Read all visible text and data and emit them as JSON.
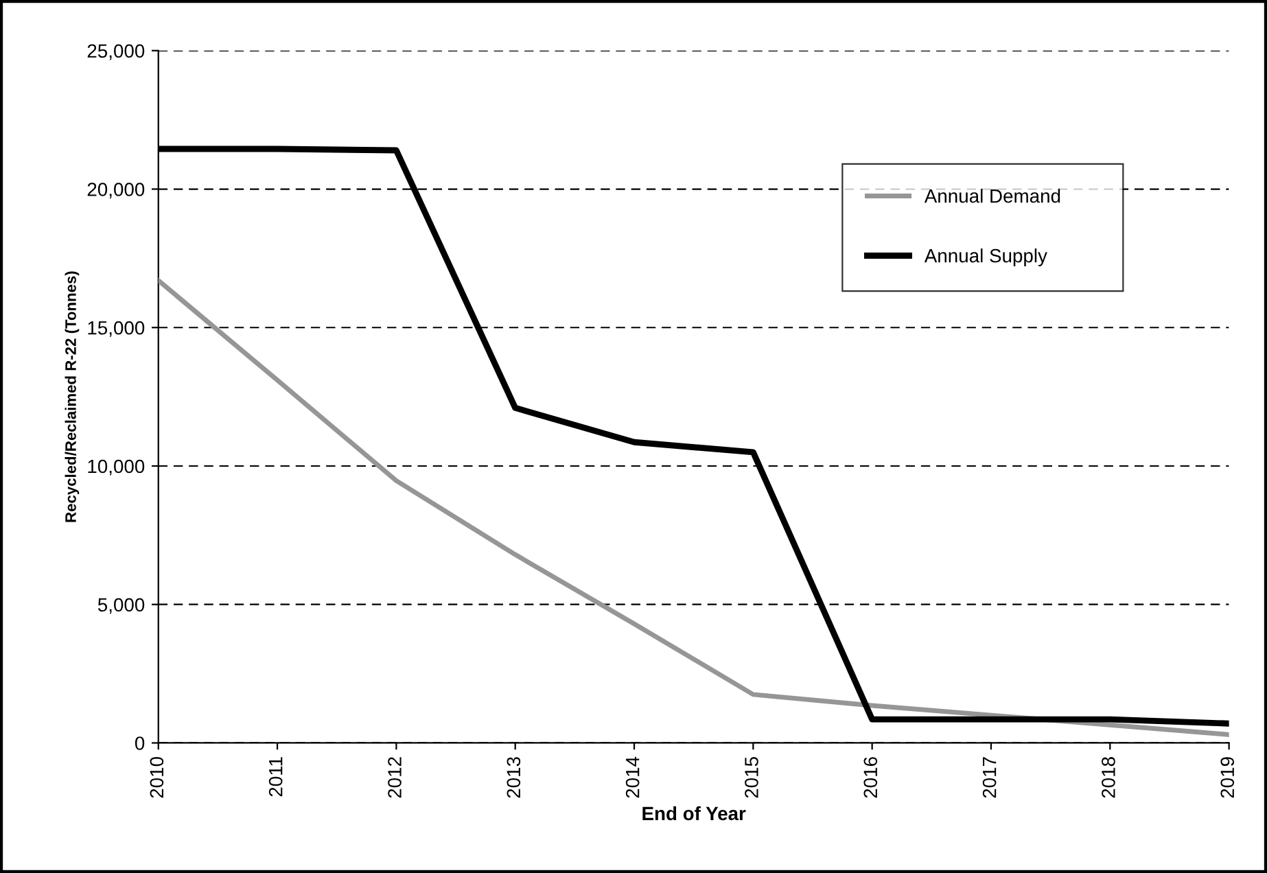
{
  "chart_data": {
    "type": "line",
    "xlabel": "End of Year",
    "ylabel": "Recycled/Reclaimed R-22 (Tonnes)",
    "categories": [
      "2010",
      "2011",
      "2012",
      "2013",
      "2014",
      "2015",
      "2016",
      "2017",
      "2018",
      "2019"
    ],
    "series": [
      {
        "name": "Annual Demand",
        "color": "#969696",
        "values": [
          16700,
          13100,
          9470,
          6800,
          4300,
          1750,
          1350,
          1000,
          650,
          300
        ]
      },
      {
        "name": "Annual Supply",
        "color": "#000000",
        "values": [
          21450,
          21450,
          21400,
          12100,
          10860,
          10500,
          850,
          850,
          850,
          700
        ]
      }
    ],
    "ylim": [
      0,
      25000
    ],
    "yticks": [
      {
        "value": 0,
        "label": "0"
      },
      {
        "value": 5000,
        "label": "5,000"
      },
      {
        "value": 10000,
        "label": "10,000"
      },
      {
        "value": 15000,
        "label": "15,000"
      },
      {
        "value": 20000,
        "label": "20,000"
      },
      {
        "value": 25000,
        "label": "25,000"
      }
    ],
    "grid": "y",
    "legend": "top right",
    "marker": "none",
    "line_style": "solid"
  }
}
